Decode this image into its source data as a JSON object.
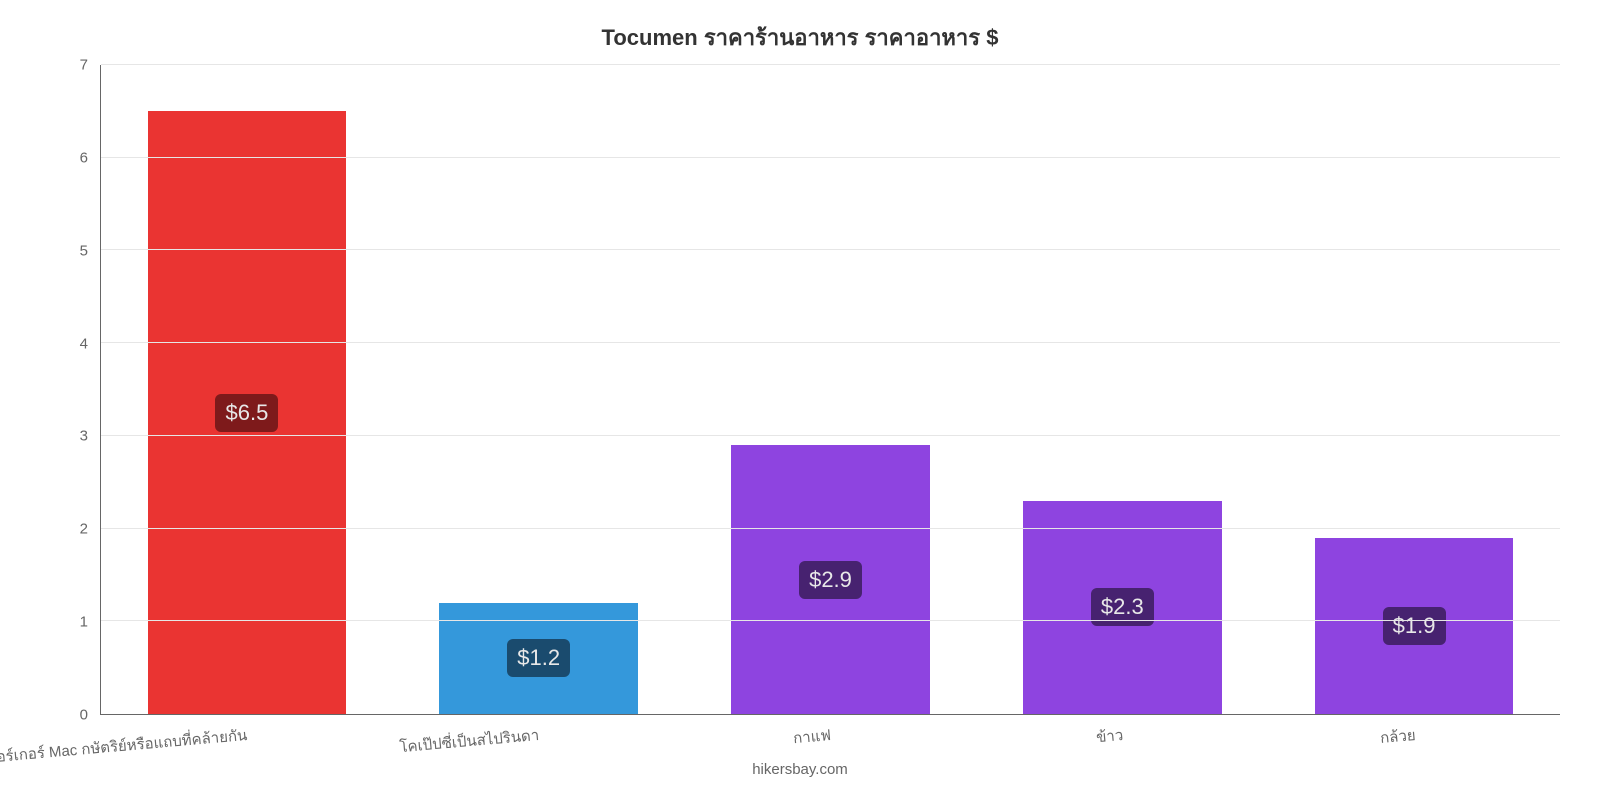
{
  "chart": {
    "type": "bar",
    "title": "Tocumen ราคาร้านอาหาร ราคาอาหาร $",
    "title_fontsize": 22,
    "title_color": "#333333",
    "categories": [
      "เบอร์เกอร์ Mac กษัตริย์หรือแถบที่คล้ายกัน",
      "โคเป๊ปซี่เป็นสไปรินดา",
      "กาแฟ",
      "ข้าว",
      "กล้วย"
    ],
    "values": [
      6.5,
      1.2,
      2.9,
      2.3,
      1.9
    ],
    "value_labels": [
      "$6.5",
      "$1.2",
      "$2.9",
      "$2.3",
      "$1.9"
    ],
    "bar_colors": [
      "#ea3432",
      "#3498db",
      "#8e44e0",
      "#8e44e0",
      "#8e44e0"
    ],
    "label_bg_colors": [
      "#7e1a1b",
      "#1a4b6e",
      "#472270",
      "#472270",
      "#472270"
    ],
    "label_text_color": "#e8e8e8",
    "label_fontsize": 22,
    "ylim": [
      0,
      7
    ],
    "yticks": [
      0,
      1,
      2,
      3,
      4,
      5,
      6,
      7
    ],
    "ytick_labels": [
      "0",
      "1",
      "2",
      "3",
      "4",
      "5",
      "6",
      "7"
    ],
    "bar_width": 0.68,
    "background_color": "#ffffff",
    "grid_color": "#e6e6e6",
    "axis_color": "#666666",
    "tick_font_color": "#666666",
    "tick_fontsize": 15,
    "x_label_rotate_deg": -5,
    "x_label_fontsize": 15,
    "credit": "hikersbay.com",
    "credit_color": "#666666",
    "credit_fontsize": 15
  }
}
